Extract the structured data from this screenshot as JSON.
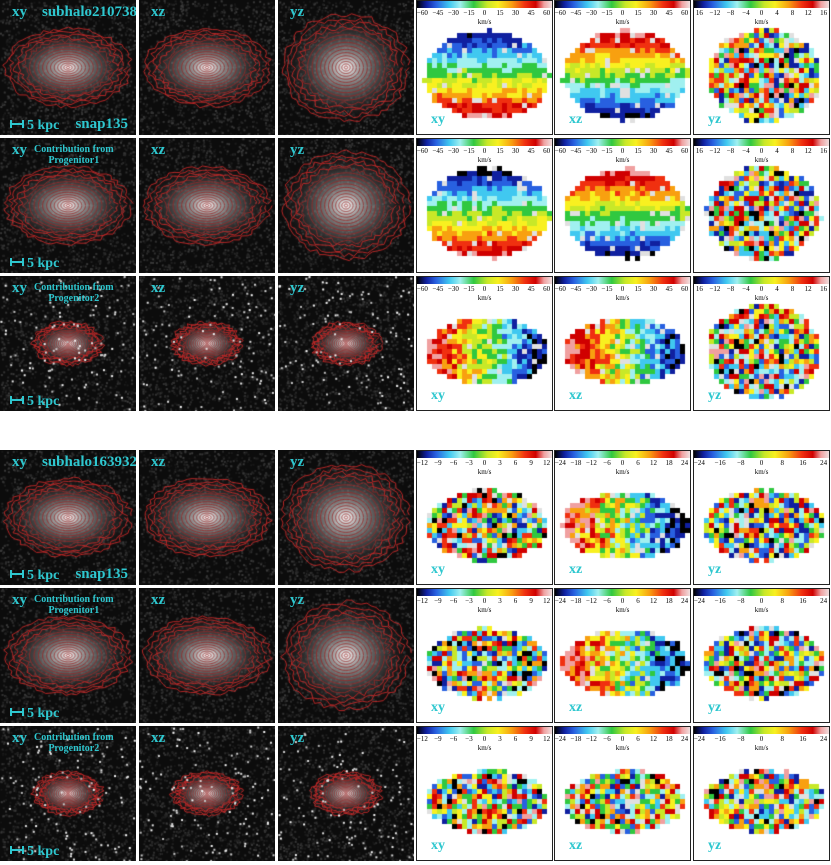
{
  "groups": [
    {
      "name_label": "subhalo210738",
      "snap_label": "snap135",
      "rows": [
        {
          "projections": [
            "xy",
            "xz",
            "yz"
          ],
          "contrib": "",
          "scale": "5 kpc",
          "colorbar_ticks": [
            [
              "−60",
              "−45",
              "−30",
              "−15",
              "0",
              "15",
              "30",
              "45",
              "60"
            ],
            [
              "−60",
              "−45",
              "−30",
              "−15",
              "0",
              "15",
              "30",
              "45",
              "60"
            ],
            [
              "16",
              "−12",
              "−8",
              "−4",
              "0",
              "4",
              "8",
              "12",
              "16"
            ]
          ],
          "unit": "km/s",
          "vlabels": [
            "xy",
            "xz",
            "yz"
          ]
        },
        {
          "projections": [
            "xy",
            "xz",
            "yz"
          ],
          "contrib": "Contribution from\nProgenitor1",
          "scale": "5 kpc",
          "colorbar_ticks": [
            [
              "−60",
              "−45",
              "−30",
              "−15",
              "0",
              "15",
              "30",
              "45",
              "60"
            ],
            [
              "−60",
              "−45",
              "−30",
              "−15",
              "0",
              "15",
              "30",
              "45",
              "60"
            ],
            [
              "16",
              "−12",
              "−8",
              "−4",
              "0",
              "4",
              "8",
              "12",
              "16"
            ]
          ],
          "unit": "km/s",
          "vlabels": [
            "",
            "",
            ""
          ]
        },
        {
          "projections": [
            "xy",
            "xz",
            "yz"
          ],
          "contrib": "Contribution from\nProgenitor2",
          "scale": "5 kpc",
          "colorbar_ticks": [
            [
              "−60",
              "−45",
              "−30",
              "−15",
              "0",
              "15",
              "30",
              "45",
              "60"
            ],
            [
              "−60",
              "−45",
              "−30",
              "−15",
              "0",
              "15",
              "30",
              "45",
              "60"
            ],
            [
              "16",
              "−12",
              "−8",
              "−4",
              "0",
              "4",
              "8",
              "12",
              "16"
            ]
          ],
          "unit": "km/s",
          "vlabels": [
            "xy",
            "xz",
            "yz"
          ]
        }
      ]
    },
    {
      "name_label": "subhalo163932",
      "snap_label": "snap135",
      "rows": [
        {
          "projections": [
            "xy",
            "xz",
            "yz"
          ],
          "contrib": "",
          "scale": "5 kpc",
          "colorbar_ticks": [
            [
              "−12",
              "−9",
              "−6",
              "−3",
              "0",
              "3",
              "6",
              "9",
              "12"
            ],
            [
              "−24",
              "−18",
              "−12",
              "−6",
              "0",
              "6",
              "12",
              "18",
              "24"
            ],
            [
              "−24",
              "−16",
              "−8",
              "0",
              "8",
              "16",
              "24"
            ]
          ],
          "unit": "km/s",
          "vlabels": [
            "xy",
            "xz",
            "yz"
          ]
        },
        {
          "projections": [
            "xy",
            "xz",
            "yz"
          ],
          "contrib": "Contribution from\nProgenitor1",
          "scale": "5 kpc",
          "colorbar_ticks": [
            [
              "−12",
              "−9",
              "−6",
              "−3",
              "0",
              "3",
              "6",
              "9",
              "12"
            ],
            [
              "−24",
              "−18",
              "−12",
              "−6",
              "0",
              "6",
              "12",
              "18",
              "24"
            ],
            [
              "−24",
              "−16",
              "−8",
              "0",
              "8",
              "16",
              "24"
            ]
          ],
          "unit": "km/s",
          "vlabels": [
            "xy",
            "xz",
            "yz"
          ]
        },
        {
          "projections": [
            "xy",
            "xz",
            "yz"
          ],
          "contrib": "Contribution from\nProgenitor2",
          "scale": "5 kpc",
          "colorbar_ticks": [
            [
              "−12",
              "−9",
              "−6",
              "−3",
              "0",
              "3",
              "6",
              "9",
              "12"
            ],
            [
              "−24",
              "−18",
              "−12",
              "−6",
              "0",
              "6",
              "12",
              "18",
              "24"
            ],
            [
              "−24",
              "−16",
              "−8",
              "0",
              "8",
              "16",
              "24"
            ]
          ],
          "unit": "km/s",
          "vlabels": [
            "xy",
            "xz",
            "yz"
          ]
        }
      ]
    }
  ]
}
